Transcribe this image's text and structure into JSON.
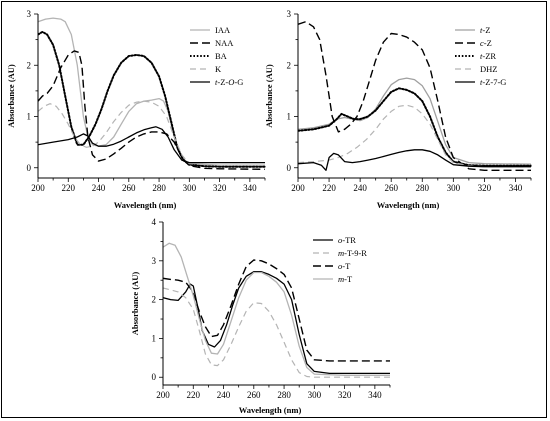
{
  "chart_data": [
    {
      "type": "line",
      "xlabel": "Wavelength (nm)",
      "ylabel": "Absorbance (AU)",
      "xlim": [
        200,
        350
      ],
      "ylim": [
        -0.2,
        3.0
      ],
      "xticks": [
        "200",
        "220",
        "240",
        "260",
        "280",
        "300",
        "320",
        "340"
      ],
      "yticks": [
        "0",
        "1",
        "2",
        "3"
      ],
      "legend": "top-right",
      "series": [
        {
          "name": "IAA",
          "style": "solid",
          "color": "#b4b4b4",
          "x": [
            200,
            205,
            210,
            215,
            218,
            222,
            226,
            230,
            233,
            236,
            240,
            245,
            250,
            255,
            260,
            265,
            270,
            275,
            280,
            283,
            286,
            290,
            295,
            300,
            320,
            350
          ],
          "y": [
            2.85,
            2.9,
            2.92,
            2.9,
            2.85,
            2.6,
            2.0,
            1.0,
            0.6,
            0.45,
            0.42,
            0.45,
            0.6,
            0.85,
            1.1,
            1.25,
            1.3,
            1.32,
            1.35,
            1.3,
            1.1,
            0.6,
            0.2,
            0.08,
            0.05,
            0.05
          ]
        },
        {
          "name": "NAA",
          "style": "dashed",
          "color": "#000000",
          "x": [
            200,
            203,
            206,
            210,
            215,
            220,
            224,
            227,
            229,
            231,
            233,
            236,
            240,
            245,
            250,
            255,
            260,
            265,
            270,
            275,
            280,
            285,
            290,
            295,
            300,
            310,
            320,
            350
          ],
          "y": [
            1.3,
            1.4,
            1.45,
            1.6,
            1.95,
            2.2,
            2.28,
            2.25,
            2.0,
            1.2,
            0.6,
            0.25,
            0.13,
            0.17,
            0.27,
            0.38,
            0.5,
            0.6,
            0.66,
            0.7,
            0.7,
            0.66,
            0.5,
            0.2,
            0.04,
            -0.01,
            -0.02,
            -0.03
          ]
        },
        {
          "name": "BA",
          "style": "dotted",
          "color": "#000000",
          "x": [
            200,
            203,
            206,
            210,
            214,
            218,
            222,
            226,
            230,
            234,
            238,
            242,
            246,
            250,
            255,
            260,
            265,
            270,
            275,
            280,
            284,
            288,
            292,
            296,
            300,
            310,
            320,
            350
          ],
          "y": [
            2.6,
            2.65,
            2.6,
            2.4,
            2.0,
            1.4,
            0.8,
            0.45,
            0.45,
            0.62,
            0.85,
            1.15,
            1.5,
            1.8,
            2.05,
            2.18,
            2.2,
            2.18,
            2.05,
            1.78,
            1.4,
            0.9,
            0.4,
            0.15,
            0.06,
            0.03,
            0.02,
            0.02
          ]
        },
        {
          "name": "K",
          "style": "dashed-gray",
          "color": "#b4b4b4",
          "x": [
            200,
            204,
            208,
            212,
            216,
            220,
            224,
            228,
            232,
            236,
            240,
            245,
            250,
            255,
            260,
            265,
            270,
            275,
            280,
            285,
            290,
            295,
            300,
            320,
            350
          ],
          "y": [
            1.1,
            1.2,
            1.25,
            1.2,
            1.05,
            0.85,
            0.6,
            0.45,
            0.4,
            0.42,
            0.5,
            0.68,
            0.9,
            1.08,
            1.22,
            1.28,
            1.3,
            1.28,
            1.2,
            1.0,
            0.6,
            0.25,
            0.08,
            0.05,
            0.05
          ]
        },
        {
          "name": "t-Z-O-G",
          "style": "solid",
          "color": "#000000",
          "x": [
            200,
            210,
            220,
            226,
            230,
            233,
            236,
            240,
            245,
            250,
            255,
            260,
            265,
            270,
            275,
            278,
            282,
            286,
            290,
            295,
            300,
            320,
            350
          ],
          "y": [
            0.45,
            0.5,
            0.55,
            0.6,
            0.66,
            0.62,
            0.48,
            0.42,
            0.42,
            0.46,
            0.52,
            0.6,
            0.68,
            0.74,
            0.78,
            0.8,
            0.75,
            0.6,
            0.35,
            0.15,
            0.1,
            0.1,
            0.1
          ]
        }
      ]
    },
    {
      "type": "line",
      "xlabel": "Wavelength (nm)",
      "ylabel": "Absorbance (AU)",
      "xlim": [
        200,
        350
      ],
      "ylim": [
        -0.2,
        3.0
      ],
      "xticks": [
        "200",
        "220",
        "240",
        "260",
        "280",
        "300",
        "320",
        "340"
      ],
      "yticks": [
        "0",
        "1",
        "2",
        "3"
      ],
      "legend": "top-right",
      "series": [
        {
          "name": "t-Z",
          "style": "solid",
          "color": "#a0a0a0",
          "x": [
            200,
            210,
            220,
            225,
            230,
            235,
            240,
            245,
            250,
            255,
            260,
            265,
            270,
            275,
            280,
            285,
            290,
            295,
            300,
            310,
            320,
            350
          ],
          "y": [
            0.75,
            0.78,
            0.85,
            0.95,
            0.98,
            0.95,
            0.92,
            0.98,
            1.15,
            1.4,
            1.62,
            1.72,
            1.75,
            1.72,
            1.6,
            1.35,
            0.9,
            0.45,
            0.2,
            0.1,
            0.08,
            0.07
          ]
        },
        {
          "name": "c-Z",
          "style": "dashed",
          "color": "#000000",
          "x": [
            200,
            205,
            210,
            214,
            218,
            222,
            226,
            230,
            234,
            238,
            242,
            246,
            250,
            255,
            260,
            265,
            270,
            275,
            280,
            285,
            290,
            295,
            300,
            310,
            320,
            350
          ],
          "y": [
            2.8,
            2.85,
            2.75,
            2.5,
            1.8,
            1.0,
            0.7,
            0.75,
            0.85,
            1.0,
            1.3,
            1.7,
            2.1,
            2.45,
            2.62,
            2.6,
            2.55,
            2.45,
            2.3,
            1.95,
            1.3,
            0.6,
            0.2,
            -0.02,
            -0.05,
            -0.05
          ]
        },
        {
          "name": "t-ZR",
          "style": "dotted",
          "color": "#000000",
          "x": [
            200,
            210,
            220,
            225,
            228,
            232,
            236,
            240,
            245,
            250,
            255,
            260,
            265,
            270,
            275,
            280,
            285,
            290,
            295,
            300,
            310,
            320,
            350
          ],
          "y": [
            0.72,
            0.75,
            0.82,
            0.95,
            1.05,
            1.0,
            0.95,
            0.95,
            1.0,
            1.12,
            1.3,
            1.48,
            1.55,
            1.52,
            1.45,
            1.3,
            1.0,
            0.6,
            0.3,
            0.12,
            0.05,
            0.04,
            0.04
          ]
        },
        {
          "name": "DHZ",
          "style": "dashed-gray",
          "color": "#b4b4b4",
          "x": [
            200,
            210,
            220,
            226,
            232,
            238,
            244,
            250,
            255,
            260,
            265,
            270,
            275,
            280,
            285,
            290,
            295,
            300,
            310,
            320,
            350
          ],
          "y": [
            0.1,
            0.12,
            0.15,
            0.2,
            0.28,
            0.4,
            0.55,
            0.75,
            0.95,
            1.1,
            1.2,
            1.22,
            1.18,
            1.05,
            0.85,
            0.55,
            0.25,
            0.1,
            0.04,
            0.02,
            0.02
          ]
        },
        {
          "name": "t-Z-7-G",
          "style": "solid",
          "color": "#000000",
          "x": [
            200,
            210,
            215,
            218,
            220,
            223,
            226,
            230,
            235,
            240,
            245,
            250,
            255,
            260,
            265,
            270,
            275,
            280,
            285,
            290,
            295,
            300,
            310,
            320,
            350
          ],
          "y": [
            0.08,
            0.1,
            0.05,
            -0.05,
            0.2,
            0.28,
            0.25,
            0.12,
            0.1,
            0.12,
            0.15,
            0.18,
            0.22,
            0.26,
            0.3,
            0.33,
            0.35,
            0.35,
            0.32,
            0.25,
            0.15,
            0.06,
            0.03,
            0.02,
            0.02
          ]
        }
      ]
    },
    {
      "type": "line",
      "xlabel": "Wavelength (nm)",
      "ylabel": "Absorbance (AU)",
      "xlim": [
        200,
        350
      ],
      "ylim": [
        -0.2,
        4.0
      ],
      "xticks": [
        "200",
        "220",
        "240",
        "260",
        "280",
        "300",
        "320",
        "340"
      ],
      "yticks": [
        "0",
        "1",
        "2",
        "3",
        "4"
      ],
      "legend": "top-right",
      "series": [
        {
          "name": "o-TR",
          "style": "solid",
          "color": "#000000",
          "x": [
            200,
            205,
            210,
            215,
            218,
            220,
            223,
            226,
            230,
            234,
            238,
            242,
            246,
            250,
            255,
            260,
            265,
            270,
            275,
            280,
            285,
            290,
            295,
            300,
            310,
            320,
            350
          ],
          "y": [
            2.05,
            2.0,
            1.98,
            2.2,
            2.4,
            2.35,
            1.8,
            1.2,
            0.85,
            0.78,
            0.95,
            1.35,
            1.85,
            2.3,
            2.6,
            2.72,
            2.72,
            2.65,
            2.55,
            2.4,
            2.0,
            1.1,
            0.35,
            0.15,
            0.1,
            0.1,
            0.1
          ]
        },
        {
          "name": "m-T-9-R",
          "style": "dashed-gray",
          "color": "#b4b4b4",
          "x": [
            200,
            205,
            210,
            215,
            220,
            224,
            228,
            232,
            236,
            240,
            245,
            250,
            255,
            260,
            265,
            270,
            275,
            280,
            285,
            290,
            295,
            300,
            320,
            350
          ],
          "y": [
            2.3,
            2.25,
            2.2,
            2.05,
            1.75,
            1.2,
            0.6,
            0.32,
            0.3,
            0.45,
            0.85,
            1.3,
            1.7,
            1.92,
            1.9,
            1.7,
            1.35,
            0.9,
            0.45,
            0.12,
            0.02,
            0.0,
            0.0,
            0.0
          ]
        },
        {
          "name": "o-T",
          "style": "dashed",
          "color": "#000000",
          "x": [
            200,
            205,
            210,
            215,
            218,
            220,
            224,
            228,
            232,
            236,
            240,
            245,
            250,
            255,
            260,
            265,
            270,
            275,
            280,
            285,
            290,
            295,
            300,
            310,
            320,
            350
          ],
          "y": [
            2.55,
            2.52,
            2.5,
            2.45,
            2.3,
            2.15,
            1.7,
            1.3,
            1.05,
            1.08,
            1.35,
            1.85,
            2.4,
            2.85,
            3.02,
            3.0,
            2.92,
            2.8,
            2.65,
            2.3,
            1.5,
            0.7,
            0.45,
            0.42,
            0.42,
            0.42
          ]
        },
        {
          "name": "m-T",
          "style": "solid",
          "color": "#b4b4b4",
          "x": [
            200,
            204,
            208,
            212,
            216,
            220,
            224,
            228,
            232,
            236,
            240,
            245,
            250,
            255,
            260,
            265,
            270,
            275,
            280,
            285,
            290,
            295,
            300,
            320,
            350
          ],
          "y": [
            3.35,
            3.45,
            3.4,
            3.1,
            2.6,
            2.1,
            1.5,
            0.95,
            0.62,
            0.6,
            0.85,
            1.45,
            2.05,
            2.5,
            2.7,
            2.7,
            2.6,
            2.45,
            2.2,
            1.6,
            0.8,
            0.25,
            0.08,
            0.05,
            0.05
          ]
        }
      ]
    }
  ]
}
